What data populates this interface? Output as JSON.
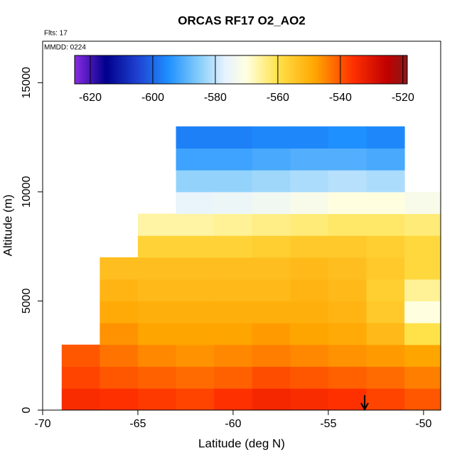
{
  "chart_data": {
    "type": "heatmap",
    "title": "ORCAS RF17 O2_AO2",
    "annotations": [
      "Flts: 17",
      "MMDD: 0224"
    ],
    "xlabel": "Latitude (deg N)",
    "ylabel": "Altitude (m)",
    "x": [
      -68,
      -66,
      -64,
      -62,
      -60,
      -58,
      -56,
      -54,
      -52,
      -50
    ],
    "y": [
      500,
      1500,
      2500,
      3500,
      4500,
      5500,
      6500,
      7500,
      8500,
      9500,
      10500,
      11500,
      12500
    ],
    "z": [
      [
        -535,
        -536,
        -537,
        -538,
        -536,
        -534,
        -535,
        -536,
        -538,
        -540
      ],
      [
        -538,
        -540,
        -541,
        -542,
        -541,
        -539,
        -540,
        -541,
        -542,
        -544
      ],
      [
        -540,
        -543,
        -545,
        -546,
        -545,
        -544,
        -545,
        -546,
        -547,
        -548
      ],
      [
        null,
        -546,
        -548,
        -548,
        -548,
        -547,
        -548,
        -549,
        -552,
        -560
      ],
      [
        null,
        -549,
        -550,
        -550,
        -550,
        -550,
        -550,
        -551,
        -555,
        -570
      ],
      [
        null,
        -551,
        -552,
        -552,
        -552,
        -552,
        -551,
        -552,
        -556,
        -565
      ],
      [
        null,
        -553,
        -553,
        -553,
        -553,
        -553,
        -552,
        -553,
        -555,
        -558
      ],
      [
        null,
        null,
        -557,
        -557,
        -557,
        -556,
        -555,
        -555,
        -556,
        -558
      ],
      [
        null,
        null,
        -566,
        -566,
        -565,
        -564,
        -563,
        -562,
        -562,
        -563
      ],
      [
        null,
        null,
        null,
        -576,
        -575,
        -574,
        -572,
        -570,
        -570,
        -572
      ],
      [
        null,
        null,
        null,
        -584,
        -584,
        -583,
        -582,
        -581,
        -582,
        null
      ],
      [
        null,
        null,
        null,
        -592,
        -592,
        -591,
        -590,
        -590,
        -591,
        null
      ],
      [
        null,
        null,
        null,
        -597,
        -597,
        -596,
        -596,
        -595,
        -596,
        null
      ]
    ],
    "xlim": [
      -70,
      -49.1
    ],
    "xticks": [
      -70,
      -65,
      -60,
      -55,
      -50
    ],
    "ylim": [
      0,
      16900
    ],
    "yticks": [
      0,
      5000,
      10000,
      15000
    ],
    "colorbar": {
      "lim": [
        -625,
        -518.6
      ],
      "ticks": [
        -620,
        -600,
        -580,
        -560,
        -540,
        -520
      ],
      "colorscale": [
        [
          -625,
          "#8a2be2"
        ],
        [
          -615,
          "#00008b"
        ],
        [
          -605,
          "#1e40d0"
        ],
        [
          -595,
          "#1e90ff"
        ],
        [
          -585,
          "#87cefa"
        ],
        [
          -577,
          "#e6f2ff"
        ],
        [
          -570,
          "#ffffe0"
        ],
        [
          -560,
          "#ffe24a"
        ],
        [
          -548,
          "#ffa500"
        ],
        [
          -536,
          "#ff3000"
        ],
        [
          -525,
          "#c00000"
        ],
        [
          -518.6,
          "#8b1a1a"
        ]
      ]
    }
  }
}
